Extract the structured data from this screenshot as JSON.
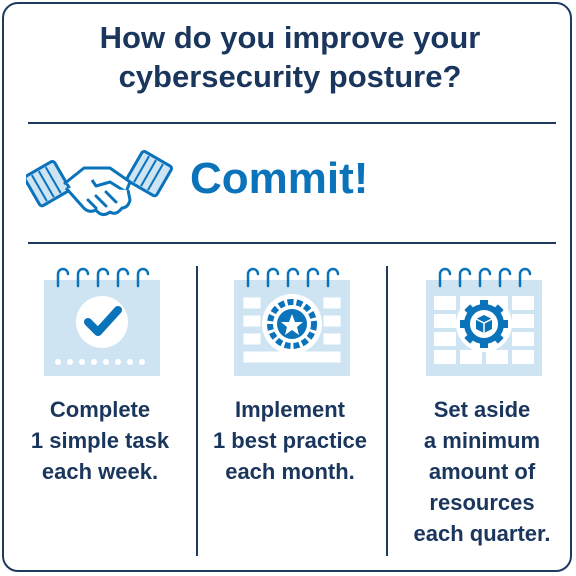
{
  "title": {
    "line1": "How do you improve your",
    "line2": "cybersecurity posture?"
  },
  "headline": {
    "text": "Commit!",
    "icon": "handshake-icon",
    "color": "#0a73ba"
  },
  "colors": {
    "navy": "#1b365d",
    "accent": "#0a73ba",
    "light_blue": "#cfe4f3"
  },
  "steps": [
    {
      "icon": "calendar-check-icon",
      "lines": [
        "Complete",
        "1 simple task",
        "each week."
      ]
    },
    {
      "icon": "calendar-badge-icon",
      "lines": [
        "Implement",
        "1 best practice",
        "each month."
      ]
    },
    {
      "icon": "calendar-gear-icon",
      "lines": [
        "Set aside",
        "a minimum",
        "amount of",
        "resources",
        "each quarter."
      ]
    }
  ]
}
